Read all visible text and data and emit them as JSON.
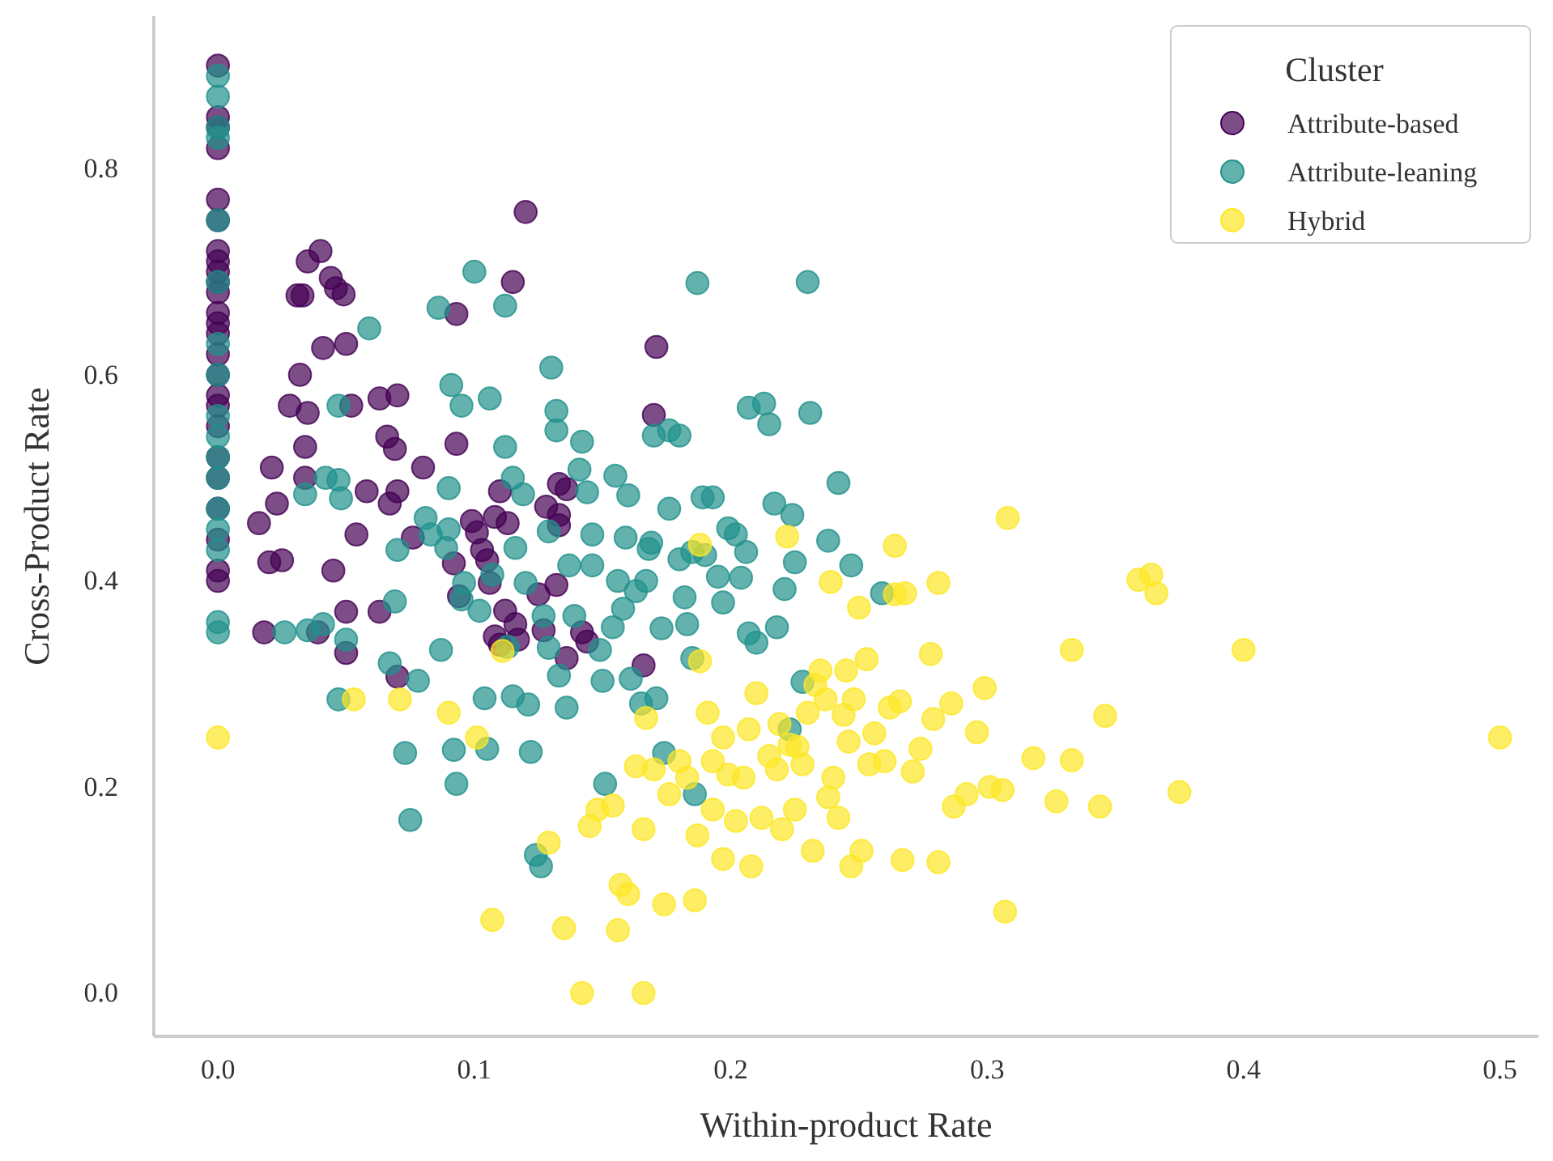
{
  "chart_data": {
    "type": "scatter",
    "xlabel": "Within-product Rate",
    "ylabel": "Cross-Product Rate",
    "legend_title": "Cluster",
    "legend": "top right",
    "grid": false,
    "marker": "circle",
    "xlim": [
      -0.025,
      0.515
    ],
    "ylim": [
      -0.042,
      0.948
    ],
    "xticks": [
      {
        "value": 0,
        "label": "0.0"
      },
      0.1,
      0.2,
      0.3,
      0.4,
      0.5
    ],
    "yticks": [
      {
        "value": 0,
        "label": "0.0"
      },
      0.2,
      0.4,
      0.6,
      0.8
    ],
    "series": [
      {
        "name": "Attribute-based",
        "color": "#440154",
        "x": [
          0,
          0,
          0,
          0,
          0,
          0,
          0,
          0,
          0,
          0,
          0,
          0,
          0,
          0,
          0,
          0,
          0,
          0,
          0,
          0,
          0,
          0,
          0,
          0,
          0,
          0.016,
          0.02,
          0.025,
          0.023,
          0.018,
          0.021,
          0.028,
          0.032,
          0.035,
          0.04,
          0.031,
          0.033,
          0.044,
          0.046,
          0.041,
          0.05,
          0.049,
          0.035,
          0.034,
          0.034,
          0.045,
          0.05,
          0.039,
          0.052,
          0.05,
          0.054,
          0.058,
          0.063,
          0.066,
          0.067,
          0.069,
          0.07,
          0.07,
          0.08,
          0.076,
          0.07,
          0.063,
          0.093,
          0.093,
          0.092,
          0.094,
          0.099,
          0.101,
          0.103,
          0.105,
          0.108,
          0.11,
          0.113,
          0.106,
          0.108,
          0.11,
          0.112,
          0.115,
          0.12,
          0.116,
          0.117,
          0.125,
          0.127,
          0.133,
          0.133,
          0.132,
          0.136,
          0.133,
          0.136,
          0.128,
          0.171,
          0.17,
          0.166,
          0.142,
          0.144
        ],
        "values": [
          0.9,
          0.85,
          0.84,
          0.82,
          0.77,
          0.75,
          0.72,
          0.71,
          0.7,
          0.69,
          0.68,
          0.66,
          0.65,
          0.64,
          0.62,
          0.6,
          0.58,
          0.57,
          0.55,
          0.52,
          0.5,
          0.47,
          0.44,
          0.41,
          0.4,
          0.456,
          0.418,
          0.42,
          0.475,
          0.35,
          0.51,
          0.57,
          0.6,
          0.71,
          0.72,
          0.677,
          0.677,
          0.694,
          0.684,
          0.626,
          0.63,
          0.678,
          0.563,
          0.53,
          0.5,
          0.41,
          0.37,
          0.35,
          0.57,
          0.33,
          0.445,
          0.487,
          0.577,
          0.54,
          0.475,
          0.528,
          0.58,
          0.487,
          0.51,
          0.442,
          0.307,
          0.37,
          0.533,
          0.659,
          0.417,
          0.385,
          0.458,
          0.447,
          0.43,
          0.42,
          0.462,
          0.487,
          0.456,
          0.398,
          0.346,
          0.338,
          0.371,
          0.69,
          0.758,
          0.358,
          0.343,
          0.387,
          0.352,
          0.464,
          0.454,
          0.396,
          0.325,
          0.494,
          0.489,
          0.472,
          0.627,
          0.561,
          0.318,
          0.35,
          0.341
        ]
      },
      {
        "name": "Attribute-leaning",
        "color": "#21918c",
        "x": [
          0,
          0,
          0,
          0,
          0,
          0,
          0,
          0,
          0,
          0,
          0,
          0,
          0,
          0,
          0,
          0,
          0,
          0.026,
          0.035,
          0.041,
          0.034,
          0.047,
          0.042,
          0.047,
          0.048,
          0.059,
          0.05,
          0.047,
          0.067,
          0.073,
          0.075,
          0.069,
          0.07,
          0.078,
          0.081,
          0.083,
          0.087,
          0.089,
          0.09,
          0.092,
          0.093,
          0.09,
          0.095,
          0.086,
          0.1,
          0.091,
          0.095,
          0.096,
          0.102,
          0.104,
          0.105,
          0.106,
          0.107,
          0.112,
          0.112,
          0.115,
          0.113,
          0.115,
          0.116,
          0.119,
          0.12,
          0.121,
          0.122,
          0.124,
          0.126,
          0.127,
          0.129,
          0.129,
          0.13,
          0.132,
          0.132,
          0.133,
          0.136,
          0.137,
          0.139,
          0.141,
          0.142,
          0.144,
          0.146,
          0.146,
          0.149,
          0.15,
          0.151,
          0.154,
          0.155,
          0.156,
          0.158,
          0.159,
          0.16,
          0.161,
          0.163,
          0.165,
          0.167,
          0.168,
          0.169,
          0.17,
          0.171,
          0.173,
          0.176,
          0.176,
          0.18,
          0.18,
          0.182,
          0.183,
          0.185,
          0.185,
          0.187,
          0.189,
          0.19,
          0.193,
          0.195,
          0.197,
          0.199,
          0.202,
          0.204,
          0.206,
          0.207,
          0.21,
          0.213,
          0.215,
          0.217,
          0.218,
          0.221,
          0.224,
          0.225,
          0.228,
          0.23,
          0.231,
          0.238,
          0.242,
          0.247,
          0.259,
          0.223,
          0.207,
          0.186,
          0.174
        ],
        "values": [
          0.89,
          0.87,
          0.84,
          0.83,
          0.75,
          0.69,
          0.63,
          0.6,
          0.56,
          0.54,
          0.52,
          0.5,
          0.47,
          0.45,
          0.43,
          0.36,
          0.35,
          0.35,
          0.352,
          0.358,
          0.484,
          0.498,
          0.5,
          0.57,
          0.48,
          0.645,
          0.343,
          0.285,
          0.32,
          0.233,
          0.168,
          0.38,
          0.43,
          0.303,
          0.461,
          0.445,
          0.333,
          0.432,
          0.49,
          0.236,
          0.203,
          0.45,
          0.382,
          0.665,
          0.7,
          0.59,
          0.57,
          0.398,
          0.371,
          0.286,
          0.237,
          0.577,
          0.406,
          0.667,
          0.53,
          0.5,
          0.336,
          0.288,
          0.432,
          0.484,
          0.398,
          0.28,
          0.234,
          0.134,
          0.123,
          0.366,
          0.335,
          0.448,
          0.607,
          0.565,
          0.546,
          0.308,
          0.277,
          0.415,
          0.366,
          0.508,
          0.535,
          0.486,
          0.445,
          0.415,
          0.333,
          0.303,
          0.203,
          0.355,
          0.502,
          0.4,
          0.373,
          0.442,
          0.483,
          0.305,
          0.39,
          0.281,
          0.4,
          0.431,
          0.437,
          0.541,
          0.286,
          0.354,
          0.546,
          0.47,
          0.421,
          0.541,
          0.384,
          0.358,
          0.325,
          0.428,
          0.689,
          0.481,
          0.425,
          0.481,
          0.404,
          0.379,
          0.451,
          0.445,
          0.403,
          0.428,
          0.568,
          0.34,
          0.572,
          0.552,
          0.475,
          0.355,
          0.392,
          0.464,
          0.418,
          0.302,
          0.69,
          0.563,
          0.439,
          0.495,
          0.415,
          0.388,
          0.256,
          0.349,
          0.193,
          0.233
        ]
      },
      {
        "name": "Hybrid",
        "color": "#fde725",
        "x": [
          0,
          0.053,
          0.071,
          0.09,
          0.101,
          0.107,
          0.111,
          0.129,
          0.135,
          0.142,
          0.145,
          0.148,
          0.154,
          0.156,
          0.157,
          0.16,
          0.163,
          0.166,
          0.166,
          0.167,
          0.17,
          0.174,
          0.176,
          0.18,
          0.183,
          0.186,
          0.187,
          0.188,
          0.188,
          0.191,
          0.193,
          0.193,
          0.197,
          0.197,
          0.199,
          0.202,
          0.205,
          0.207,
          0.208,
          0.21,
          0.212,
          0.215,
          0.218,
          0.219,
          0.22,
          0.222,
          0.223,
          0.225,
          0.226,
          0.228,
          0.23,
          0.232,
          0.233,
          0.235,
          0.237,
          0.238,
          0.239,
          0.24,
          0.242,
          0.244,
          0.245,
          0.246,
          0.247,
          0.248,
          0.25,
          0.251,
          0.253,
          0.254,
          0.256,
          0.26,
          0.262,
          0.264,
          0.264,
          0.266,
          0.267,
          0.268,
          0.271,
          0.274,
          0.278,
          0.279,
          0.281,
          0.281,
          0.286,
          0.287,
          0.292,
          0.296,
          0.299,
          0.301,
          0.306,
          0.307,
          0.308,
          0.318,
          0.327,
          0.333,
          0.333,
          0.344,
          0.346,
          0.359,
          0.364,
          0.366,
          0.375,
          0.4,
          0.5
        ],
        "values": [
          0.248,
          0.285,
          0.285,
          0.272,
          0.248,
          0.071,
          0.332,
          0.146,
          0.063,
          0,
          0.162,
          0.178,
          0.182,
          0.061,
          0.105,
          0.096,
          0.22,
          0.159,
          0,
          0.267,
          0.217,
          0.086,
          0.193,
          0.225,
          0.209,
          0.09,
          0.153,
          0.435,
          0.322,
          0.272,
          0.225,
          0.178,
          0.248,
          0.13,
          0.212,
          0.167,
          0.209,
          0.256,
          0.123,
          0.291,
          0.17,
          0.23,
          0.217,
          0.261,
          0.159,
          0.443,
          0.241,
          0.178,
          0.239,
          0.222,
          0.272,
          0.138,
          0.299,
          0.313,
          0.285,
          0.19,
          0.399,
          0.209,
          0.17,
          0.27,
          0.313,
          0.244,
          0.123,
          0.285,
          0.374,
          0.138,
          0.324,
          0.222,
          0.252,
          0.225,
          0.277,
          0.434,
          0.387,
          0.283,
          0.129,
          0.388,
          0.215,
          0.237,
          0.329,
          0.266,
          0.127,
          0.398,
          0.281,
          0.181,
          0.193,
          0.253,
          0.296,
          0.2,
          0.197,
          0.079,
          0.461,
          0.228,
          0.186,
          0.333,
          0.226,
          0.181,
          0.269,
          0.401,
          0.406,
          0.388,
          0.195,
          0.333,
          0.248
        ]
      }
    ]
  }
}
